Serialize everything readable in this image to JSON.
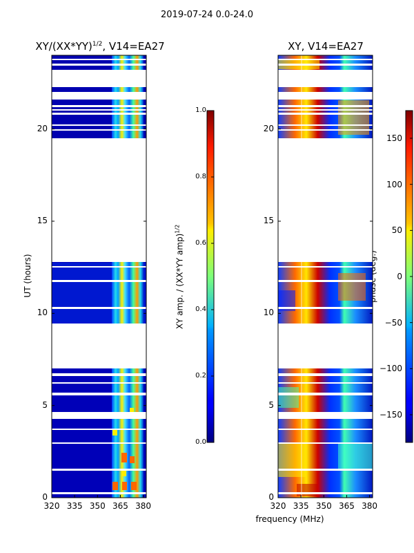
{
  "suptitle": "2019-07-24 0.0-24.0",
  "colors": {
    "accent_red": "#7f0000",
    "accent_blue": "#00007f",
    "fill_blue": "#0000b0"
  },
  "chart_data": [
    {
      "type": "heatmap",
      "title": "XY/(XX*YY)",
      "title_superscript": "1/2",
      "title_suffix": ", V14=EA27",
      "xlabel": "",
      "ylabel": "UT (hours)",
      "xlim": [
        320,
        382
      ],
      "ylim": [
        0,
        24
      ],
      "xticks": [
        320,
        335,
        350,
        365,
        380
      ],
      "yticks": [
        0,
        5,
        10,
        15,
        20
      ],
      "data_time_ranges_hours": [
        [
          0,
          7.0
        ],
        [
          9.4,
          12.8
        ],
        [
          19.5,
          24
        ]
      ],
      "bright_band_MHz": [
        362,
        380
      ],
      "colorbar": {
        "label": "XY amp. / (XX*YY amp)",
        "label_superscript": "1/2",
        "range": [
          0.0,
          1.0
        ],
        "ticks": [
          "0.0",
          "0.2",
          "0.4",
          "0.6",
          "0.8",
          "1.0"
        ]
      }
    },
    {
      "type": "heatmap",
      "title": "XY, V14=EA27",
      "xlabel": "frequency (MHz)",
      "ylabel": "",
      "xlim": [
        320,
        382
      ],
      "ylim": [
        0,
        24
      ],
      "xticks": [
        320,
        335,
        350,
        365,
        380
      ],
      "yticks": [
        0,
        5,
        10,
        15,
        20
      ],
      "data_time_ranges_hours": [
        [
          0,
          7.0
        ],
        [
          9.4,
          12.8
        ],
        [
          19.5,
          24
        ]
      ],
      "colorbar": {
        "label": "phase (deg.)",
        "range": [
          -180,
          180
        ],
        "ticks": [
          "150",
          "100",
          "50",
          "0",
          "−50",
          "−100",
          "−150"
        ]
      }
    }
  ]
}
